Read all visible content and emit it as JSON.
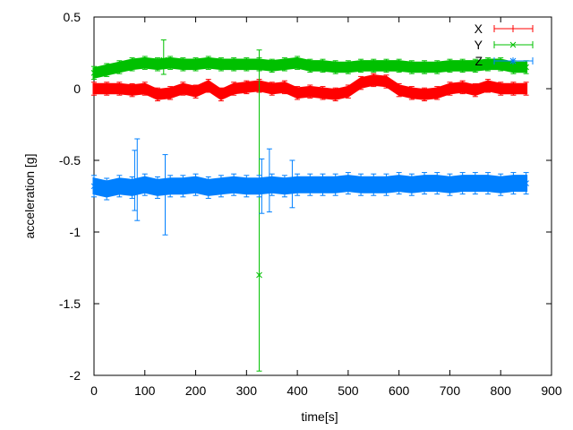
{
  "chart_data": {
    "type": "line",
    "xlabel": "time[s]",
    "ylabel": "acceleration [g]",
    "xlim": [
      0,
      900
    ],
    "ylim": [
      -2,
      0.5
    ],
    "xticks": [
      "0",
      "100",
      "200",
      "300",
      "400",
      "500",
      "600",
      "700",
      "800",
      "900"
    ],
    "yticks": [
      "0.5",
      "0",
      "-0.5",
      "-1",
      "-1.5",
      "-2"
    ],
    "ytick_values": [
      0.5,
      0,
      -0.5,
      -1,
      -1.5,
      -2
    ],
    "xtick_values": [
      0,
      100,
      200,
      300,
      400,
      500,
      600,
      700,
      800,
      900
    ],
    "grid": false,
    "legend": "top-right",
    "x": [
      0,
      25,
      50,
      75,
      100,
      125,
      150,
      175,
      200,
      225,
      250,
      275,
      300,
      325,
      350,
      375,
      400,
      425,
      450,
      475,
      500,
      525,
      550,
      575,
      600,
      625,
      650,
      675,
      700,
      725,
      750,
      775,
      800,
      825,
      850
    ],
    "series": [
      {
        "name": "X",
        "color": "#ff0000",
        "marker": "none",
        "values": [
          0,
          0.0,
          0.0,
          -0.01,
          0.0,
          -0.04,
          -0.03,
          0.0,
          -0.02,
          0.02,
          -0.04,
          0.0,
          0.01,
          0.02,
          0.0,
          0.01,
          -0.03,
          -0.02,
          -0.03,
          -0.04,
          -0.02,
          0.04,
          0.06,
          0.05,
          -0.01,
          -0.03,
          -0.04,
          -0.03,
          0.0,
          0.01,
          -0.01,
          0.02,
          0.0,
          0.0,
          0.0
        ],
        "error": 0.03
      },
      {
        "name": "Y",
        "color": "#00c000",
        "marker": "x",
        "values": [
          0.11,
          0.13,
          0.15,
          0.17,
          0.18,
          0.17,
          0.18,
          0.17,
          0.17,
          0.18,
          0.17,
          0.17,
          0.17,
          0.17,
          0.16,
          0.17,
          0.18,
          0.16,
          0.16,
          0.15,
          0.15,
          0.16,
          0.16,
          0.16,
          0.16,
          0.15,
          0.15,
          0.15,
          0.16,
          0.16,
          0.16,
          0.17,
          0.17,
          0.15,
          0.15
        ],
        "error": 0.03,
        "outliers": [
          {
            "x": 325,
            "y": -1.3,
            "low": -1.97,
            "high": 0.27
          },
          {
            "x": 137,
            "y": 0.2,
            "low": 0.1,
            "high": 0.34
          }
        ]
      },
      {
        "name": "Z",
        "color": "#0080ff",
        "marker": "*",
        "values": [
          -0.68,
          -0.7,
          -0.68,
          -0.69,
          -0.67,
          -0.69,
          -0.68,
          -0.68,
          -0.67,
          -0.69,
          -0.68,
          -0.67,
          -0.68,
          -0.68,
          -0.67,
          -0.68,
          -0.67,
          -0.67,
          -0.67,
          -0.67,
          -0.66,
          -0.67,
          -0.67,
          -0.67,
          -0.66,
          -0.67,
          -0.66,
          -0.66,
          -0.67,
          -0.66,
          -0.66,
          -0.66,
          -0.67,
          -0.66,
          -0.66
        ],
        "error": 0.05,
        "outliers": [
          {
            "x": 85,
            "y": -0.68,
            "low": -0.92,
            "high": -0.35
          },
          {
            "x": 140,
            "y": -0.7,
            "low": -1.02,
            "high": -0.46
          },
          {
            "x": 80,
            "y": -0.7,
            "low": -0.85,
            "high": -0.43
          },
          {
            "x": 345,
            "y": -0.68,
            "low": -0.86,
            "high": -0.42
          },
          {
            "x": 330,
            "y": -0.7,
            "low": -0.87,
            "high": -0.49
          },
          {
            "x": 390,
            "y": -0.66,
            "low": -0.83,
            "high": -0.5
          }
        ]
      }
    ]
  }
}
